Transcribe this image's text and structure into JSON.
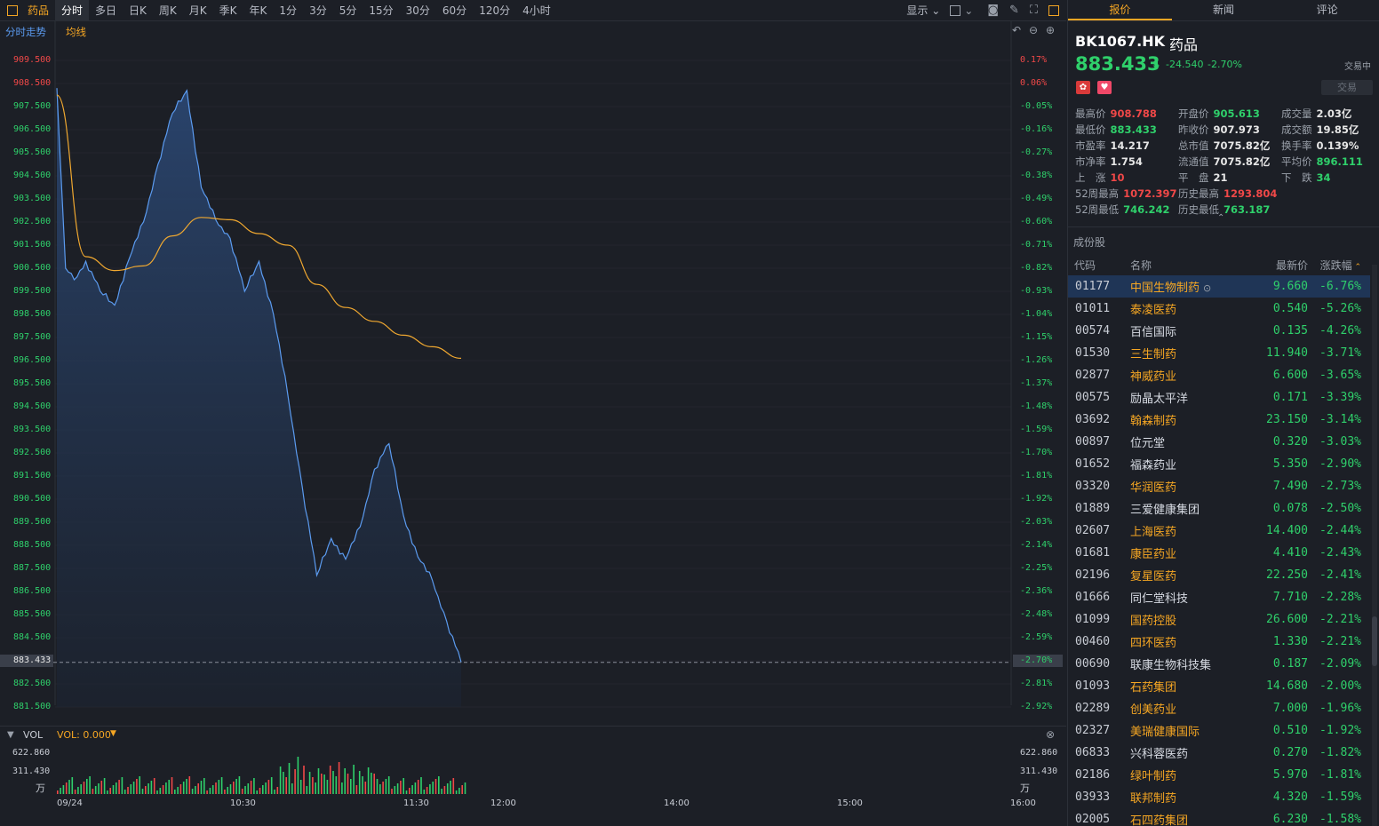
{
  "toolbar": {
    "tabs": [
      "药品",
      "分时",
      "多日",
      "日K",
      "周K",
      "月K",
      "季K",
      "年K",
      "1分",
      "3分",
      "5分",
      "15分",
      "30分",
      "60分",
      "120分",
      "4小时"
    ],
    "display_label": "显示"
  },
  "chart": {
    "title_label": "分时走势",
    "ma_label": "均线",
    "price_ticks": [
      "909.500",
      "908.500",
      "907.500",
      "906.500",
      "905.500",
      "904.500",
      "903.500",
      "902.500",
      "901.500",
      "900.500",
      "899.500",
      "898.500",
      "897.500",
      "896.500",
      "895.500",
      "894.500",
      "893.500",
      "892.500",
      "891.500",
      "890.500",
      "889.500",
      "888.500",
      "887.500",
      "886.500",
      "885.500",
      "884.500",
      "883.433",
      "882.500",
      "881.500"
    ],
    "pct_ticks": [
      "0.17%",
      "0.06%",
      "-0.05%",
      "-0.16%",
      "-0.27%",
      "-0.38%",
      "-0.49%",
      "-0.60%",
      "-0.71%",
      "-0.82%",
      "-0.93%",
      "-1.04%",
      "-1.15%",
      "-1.26%",
      "-1.37%",
      "-1.48%",
      "-1.59%",
      "-1.70%",
      "-1.81%",
      "-1.92%",
      "-2.03%",
      "-2.14%",
      "-2.25%",
      "-2.36%",
      "-2.48%",
      "-2.59%",
      "-2.70%",
      "-2.81%",
      "-2.92%"
    ],
    "current_price_tag": "883.433",
    "current_pct_tag": "-2.70%",
    "vol_label": "VOL",
    "vol_value": "VOL: 0.000",
    "vol_ticks_left": [
      "622.860",
      "311.430",
      "万"
    ],
    "vol_ticks_right": [
      "622.860",
      "311.430",
      "万"
    ],
    "time_ticks": [
      "09/24",
      "10:30",
      "11:30",
      "12:00",
      "14:00",
      "15:00",
      "16:00"
    ]
  },
  "chart_data": {
    "type": "line",
    "title": "分时走势",
    "xlabel": "",
    "ylabel": "",
    "ylim": [
      881.5,
      909.5
    ],
    "series": [
      {
        "name": "",
        "x": [
          "09:30",
          "09:33",
          "09:36",
          "09:40",
          "09:45",
          "09:50",
          "09:55",
          "10:00",
          "10:05",
          "10:10",
          "10:15",
          "10:20",
          "10:25",
          "10:30",
          "10:35",
          "10:40",
          "10:45",
          "10:50",
          "10:55",
          "11:00",
          "11:05",
          "11:10",
          "11:15",
          "11:20",
          "11:25",
          "11:30",
          "11:35",
          "11:40",
          "11:45",
          "11:50"
        ],
        "values": [
          908.3,
          900.5,
          900.0,
          900.8,
          899.5,
          898.9,
          900.9,
          902.5,
          905.0,
          907.2,
          908.2,
          904.0,
          902.6,
          901.8,
          899.5,
          900.8,
          898.5,
          895.0,
          891.0,
          887.2,
          888.8,
          887.9,
          889.3,
          891.8,
          892.9,
          889.8,
          888.0,
          887.0,
          885.2,
          883.433
        ]
      },
      {
        "name": "均线",
        "x": [
          "09:30",
          "09:40",
          "09:50",
          "10:00",
          "10:10",
          "10:20",
          "10:30",
          "10:40",
          "10:50",
          "11:00",
          "11:10",
          "11:20",
          "11:30",
          "11:40",
          "11:50"
        ],
        "values": [
          908.0,
          901.0,
          900.4,
          900.6,
          901.9,
          902.7,
          902.6,
          902.0,
          901.5,
          899.8,
          898.8,
          898.2,
          897.6,
          897.1,
          896.6
        ]
      }
    ]
  },
  "quote": {
    "tabs": [
      "报价",
      "新闻",
      "评论"
    ],
    "code": "BK1067.HK",
    "name": "药品",
    "price": "883.433",
    "arrow": "⬇",
    "change": "-24.540",
    "change_pct": "-2.70%",
    "status": "交易中",
    "trade_button": "交易",
    "stats": [
      {
        "label": "最高价",
        "value": "908.788",
        "color": "red"
      },
      {
        "label": "开盘价",
        "value": "905.613",
        "color": "green"
      },
      {
        "label": "成交量",
        "value": "2.03亿",
        "color": "white"
      },
      {
        "label": "最低价",
        "value": "883.433",
        "color": "green"
      },
      {
        "label": "昨收价",
        "value": "907.973",
        "color": "white"
      },
      {
        "label": "成交额",
        "value": "19.85亿",
        "color": "white"
      },
      {
        "label": "市盈率",
        "value": "14.217",
        "color": "white"
      },
      {
        "label": "总市值",
        "value": "7075.82亿",
        "color": "white"
      },
      {
        "label": "换手率",
        "value": "0.139%",
        "color": "white"
      },
      {
        "label": "市净率",
        "value": "1.754",
        "color": "white"
      },
      {
        "label": "流通值",
        "value": "7075.82亿",
        "color": "white"
      },
      {
        "label": "平均价",
        "value": "896.111",
        "color": "green"
      },
      {
        "label": "上　涨",
        "value": "10",
        "color": "red"
      },
      {
        "label": "平　盘",
        "value": "21",
        "color": "white"
      },
      {
        "label": "下　跌",
        "value": "34",
        "color": "green"
      },
      {
        "label": "52周最高",
        "value": "1072.397",
        "color": "red"
      },
      {
        "label": "历史最高",
        "value": "1293.804",
        "color": "red"
      },
      {
        "label": "",
        "value": "",
        "color": "white"
      },
      {
        "label": "52周最低",
        "value": "746.242",
        "color": "green"
      },
      {
        "label": "历史最低",
        "value": "763.187",
        "color": "green"
      },
      {
        "label": "",
        "value": "",
        "color": "white"
      }
    ]
  },
  "constituents": {
    "section_title": "成份股",
    "headers": [
      "代码",
      "名称",
      "最新价",
      "涨跌幅"
    ],
    "rows": [
      {
        "code": "01177",
        "name": "中国生物制药",
        "price": "9.660",
        "pct": "-6.76%",
        "hk": true
      },
      {
        "code": "01011",
        "name": "泰凌医药",
        "price": "0.540",
        "pct": "-5.26%",
        "hk": true
      },
      {
        "code": "00574",
        "name": "百信国际",
        "price": "0.135",
        "pct": "-4.26%",
        "hk": false
      },
      {
        "code": "01530",
        "name": "三生制药",
        "price": "11.940",
        "pct": "-3.71%",
        "hk": true
      },
      {
        "code": "02877",
        "name": "神威药业",
        "price": "6.600",
        "pct": "-3.65%",
        "hk": true
      },
      {
        "code": "00575",
        "name": "励晶太平洋",
        "price": "0.171",
        "pct": "-3.39%",
        "hk": false
      },
      {
        "code": "03692",
        "name": "翰森制药",
        "price": "23.150",
        "pct": "-3.14%",
        "hk": true
      },
      {
        "code": "00897",
        "name": "位元堂",
        "price": "0.320",
        "pct": "-3.03%",
        "hk": false
      },
      {
        "code": "01652",
        "name": "福森药业",
        "price": "5.350",
        "pct": "-2.90%",
        "hk": false
      },
      {
        "code": "03320",
        "name": "华润医药",
        "price": "7.490",
        "pct": "-2.73%",
        "hk": true
      },
      {
        "code": "01889",
        "name": "三爱健康集团",
        "price": "0.078",
        "pct": "-2.50%",
        "hk": false
      },
      {
        "code": "02607",
        "name": "上海医药",
        "price": "14.400",
        "pct": "-2.44%",
        "hk": true
      },
      {
        "code": "01681",
        "name": "康臣药业",
        "price": "4.410",
        "pct": "-2.43%",
        "hk": true
      },
      {
        "code": "02196",
        "name": "复星医药",
        "price": "22.250",
        "pct": "-2.41%",
        "hk": true
      },
      {
        "code": "01666",
        "name": "同仁堂科技",
        "price": "7.710",
        "pct": "-2.28%",
        "hk": false
      },
      {
        "code": "01099",
        "name": "国药控股",
        "price": "26.600",
        "pct": "-2.21%",
        "hk": true
      },
      {
        "code": "00460",
        "name": "四环医药",
        "price": "1.330",
        "pct": "-2.21%",
        "hk": true
      },
      {
        "code": "00690",
        "name": "联康生物科技集",
        "price": "0.187",
        "pct": "-2.09%",
        "hk": false
      },
      {
        "code": "01093",
        "name": "石药集团",
        "price": "14.680",
        "pct": "-2.00%",
        "hk": true
      },
      {
        "code": "02289",
        "name": "创美药业",
        "price": "7.000",
        "pct": "-1.96%",
        "hk": true
      },
      {
        "code": "02327",
        "name": "美瑞健康国际",
        "price": "0.510",
        "pct": "-1.92%",
        "hk": true
      },
      {
        "code": "06833",
        "name": "兴科蓉医药",
        "price": "0.270",
        "pct": "-1.82%",
        "hk": false
      },
      {
        "code": "02186",
        "name": "绿叶制药",
        "price": "5.970",
        "pct": "-1.81%",
        "hk": true
      },
      {
        "code": "03933",
        "name": "联邦制药",
        "price": "4.320",
        "pct": "-1.59%",
        "hk": true
      },
      {
        "code": "02005",
        "name": "石四药集团",
        "price": "6.230",
        "pct": "-1.58%",
        "hk": true
      }
    ]
  },
  "colors": {
    "up": "#f04848",
    "down": "#2fd06b",
    "accent": "#f5a623",
    "price_line": "#5b9bf0",
    "ma_line": "#f0a830",
    "selected_row": "#1f3556"
  }
}
